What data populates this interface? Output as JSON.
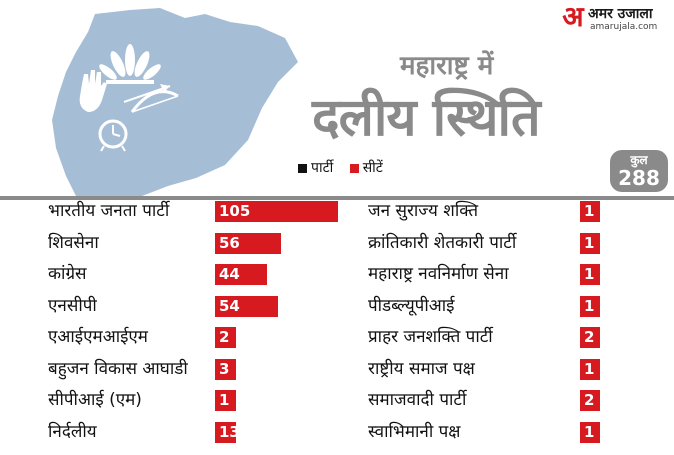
{
  "brand": {
    "logo_glyph": "अ",
    "name": "अमर उजाला",
    "url": "amarujala.com"
  },
  "title": {
    "line1": "महाराष्ट्र में",
    "line2": "दलीय स्थिति"
  },
  "legend": [
    {
      "label": "पार्टी",
      "color": "#111111"
    },
    {
      "label": "सीटें",
      "color": "#d71920"
    }
  ],
  "total": {
    "label": "कुल",
    "value": "288"
  },
  "colors": {
    "bar": "#d71920",
    "map": "#a6bdd6",
    "title": "#8a8a8a"
  },
  "chart_data": {
    "type": "bar",
    "orientation": "horizontal",
    "categories": [
      "भारतीय जनता पार्टी",
      "शिवसेना",
      "कांग्रेस",
      "एनसीपी",
      "एआईएमआईएम",
      "बहुजन विकास आघाडी",
      "सीपीआई (एम)",
      "निर्दलीय",
      "जन सुराज्य शक्ति",
      "क्रांतिकारी शेतकारी पार्टी",
      "महाराष्ट्र नवनिर्माण सेना",
      "पीडब्ल्यूपीआई",
      "प्राहर जनशक्ति पार्टी",
      "राष्ट्रीय समाज पक्ष",
      "समाजवादी पार्टी",
      "स्वाभिमानी पक्ष"
    ],
    "values": [
      105,
      56,
      44,
      54,
      2,
      3,
      1,
      13,
      1,
      1,
      1,
      1,
      2,
      1,
      2,
      1
    ],
    "xlim": [
      0,
      105
    ],
    "legend_placement": "top"
  }
}
